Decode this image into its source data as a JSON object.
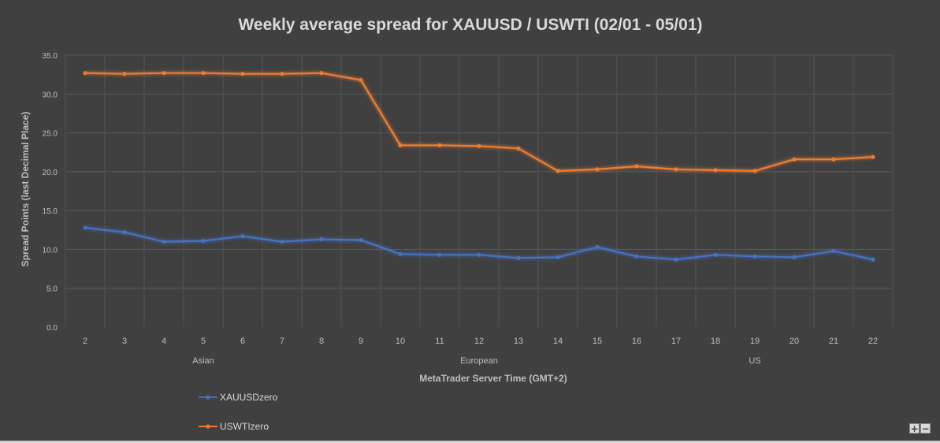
{
  "chart_data": {
    "type": "line",
    "title": "Weekly average spread for XAUUSD / USWTI (02/01 - 05/01)",
    "xlabel": "MetaTrader Server Time (GMT+2)",
    "ylabel": "Spread Points  (last Decimal Place)",
    "ylim": [
      0,
      35
    ],
    "yticks": [
      "0.0",
      "5.0",
      "10.0",
      "15.0",
      "20.0",
      "25.0",
      "30.0",
      "35.0"
    ],
    "categories": [
      "2",
      "3",
      "4",
      "5",
      "6",
      "7",
      "8",
      "9",
      "10",
      "11",
      "12",
      "13",
      "14",
      "15",
      "16",
      "17",
      "18",
      "19",
      "20",
      "21",
      "22"
    ],
    "session_labels": [
      "Asian",
      "European",
      "US"
    ],
    "grid": true,
    "legend_position": "bottom-left",
    "series": [
      {
        "name": "XAUUSDzero",
        "color": "#4472c4",
        "values": [
          12.8,
          12.2,
          11.0,
          11.1,
          11.7,
          11.0,
          11.3,
          11.2,
          9.4,
          9.3,
          9.3,
          8.9,
          9.0,
          10.3,
          9.1,
          8.7,
          9.3,
          9.1,
          9.0,
          9.8,
          8.7
        ]
      },
      {
        "name": "USWTIzero",
        "color": "#ed7d31",
        "values": [
          32.7,
          32.6,
          32.7,
          32.7,
          32.6,
          32.6,
          32.7,
          31.8,
          23.4,
          23.4,
          23.3,
          23.0,
          20.1,
          20.3,
          20.7,
          20.3,
          20.2,
          20.1,
          21.6,
          21.6,
          21.9
        ]
      }
    ]
  },
  "zoom": {
    "plus": "+",
    "minus": "−"
  }
}
